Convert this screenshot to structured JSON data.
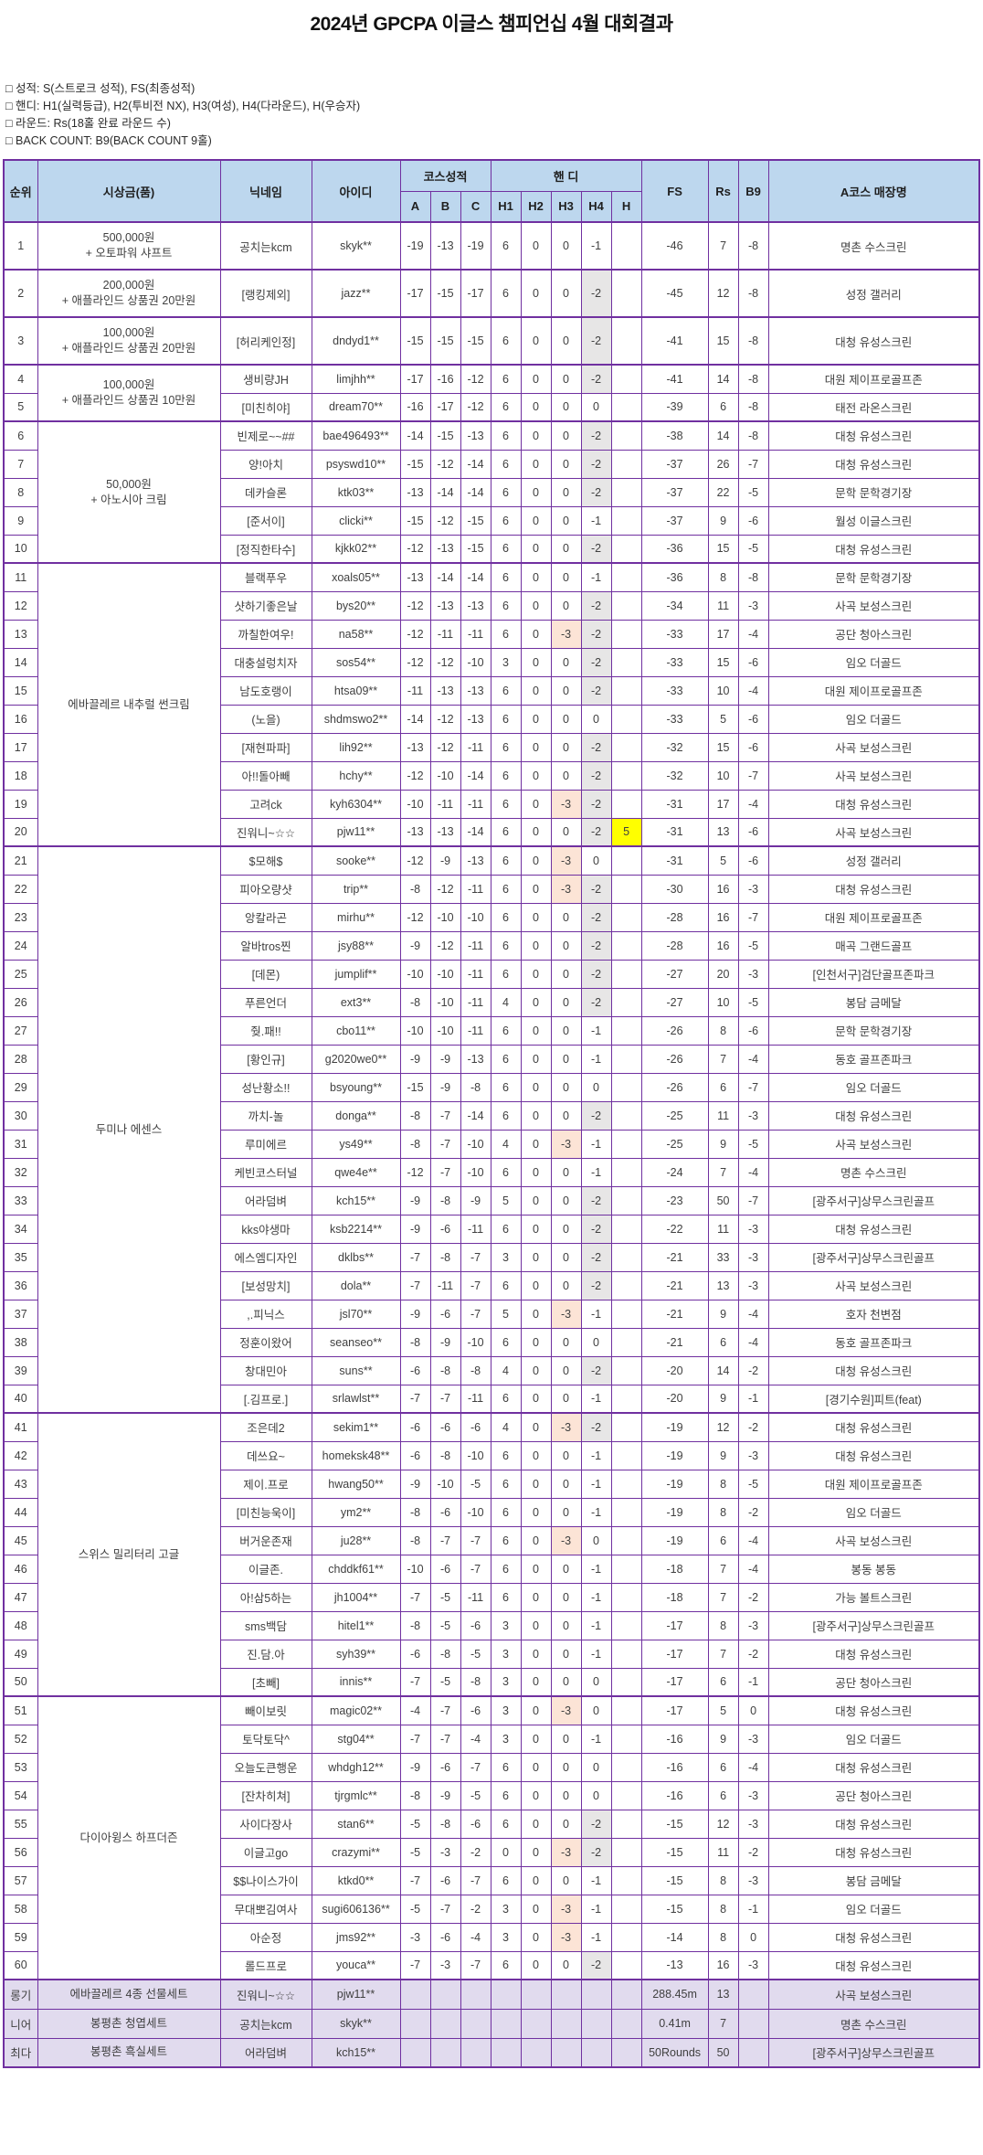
{
  "title": "2024년 GPCPA 이글스 챔피언십 4월 대회결과",
  "legend": [
    "□ 성적: S(스트로크 성적), FS(최종성적)",
    "□ 핸디: H1(실력등급), H2(투비전 NX), H3(여성), H4(다라운드), H(우승자)",
    "□ 라운드: Rs(18홀 완료 라운드 수)",
    "□ BACK COUNT: B9(BACK COUNT 9홀)"
  ],
  "colors": {
    "border": "#7030a0",
    "header_bg": "#bdd7ee",
    "h3_flag": "#fce4d6",
    "h4_flag": "#e7e6e6",
    "winner_flag": "#ffff00",
    "special_bg": "#e1dbee",
    "text": "#404040"
  },
  "table": {
    "headers": {
      "rank": "순위",
      "prize": "시상금(품)",
      "nickname": "닉네임",
      "id": "아이디",
      "course_group": "코스성적",
      "course_sub": [
        "A",
        "B",
        "C"
      ],
      "handi_group": "핸 디",
      "handi_sub": [
        "H1",
        "H2",
        "H3",
        "H4",
        "H"
      ],
      "fs": "FS",
      "rs": "Rs",
      "b9": "B9",
      "store": "A코스 매장명"
    },
    "row_columns": [
      "rank",
      "nickname",
      "id",
      "A",
      "B",
      "C",
      "H1",
      "H2",
      "H3",
      "H4",
      "H",
      "FS",
      "Rs",
      "B9",
      "store"
    ],
    "prize_groups": [
      {
        "from": 1,
        "rows": 1,
        "lines": [
          "500,000원",
          "+ 오토파워 샤프트"
        ]
      },
      {
        "from": 2,
        "rows": 1,
        "lines": [
          "200,000원",
          "+ 애플라인드 상품권 20만원"
        ]
      },
      {
        "from": 3,
        "rows": 1,
        "lines": [
          "100,000원",
          "+ 애플라인드 상품권 20만원"
        ]
      },
      {
        "from": 4,
        "rows": 2,
        "lines": [
          "100,000원",
          "+ 애플라인드 상품권 10만원"
        ]
      },
      {
        "from": 6,
        "rows": 5,
        "lines": [
          "50,000원",
          "+ 아노시아 크림"
        ]
      },
      {
        "from": 11,
        "rows": 10,
        "lines": [
          "에바끌레르 내추럴 썬크림"
        ]
      },
      {
        "from": 21,
        "rows": 20,
        "lines": [
          "두미나 에센스"
        ]
      },
      {
        "from": 41,
        "rows": 10,
        "lines": [
          "스위스 밀리터리 고글"
        ]
      },
      {
        "from": 51,
        "rows": 10,
        "lines": [
          "다이아윙스 하프더즌"
        ]
      }
    ],
    "rows": [
      [
        "1",
        "공치는kcm",
        "skyk**",
        "-19",
        "-13",
        "-19",
        "6",
        "0",
        "0",
        "-1",
        "",
        "-46",
        "7",
        "-8",
        "명촌 수스크린"
      ],
      [
        "2",
        "[랭킹제외]",
        "jazz**",
        "-17",
        "-15",
        "-17",
        "6",
        "0",
        "0",
        "-2",
        "",
        "-45",
        "12",
        "-8",
        "성정 갤러리"
      ],
      [
        "3",
        "[허리케인정]",
        "dndyd1**",
        "-15",
        "-15",
        "-15",
        "6",
        "0",
        "0",
        "-2",
        "",
        "-41",
        "15",
        "-8",
        "대청 유성스크린"
      ],
      [
        "4",
        "생비량JH",
        "limjhh**",
        "-17",
        "-16",
        "-12",
        "6",
        "0",
        "0",
        "-2",
        "",
        "-41",
        "14",
        "-8",
        "대원 제이프로골프존"
      ],
      [
        "5",
        "[미친히야]",
        "dream70**",
        "-16",
        "-17",
        "-12",
        "6",
        "0",
        "0",
        "0",
        "",
        "-39",
        "6",
        "-8",
        "태전 라온스크린"
      ],
      [
        "6",
        "빈제로~~##",
        "bae496493**",
        "-14",
        "-15",
        "-13",
        "6",
        "0",
        "0",
        "-2",
        "",
        "-38",
        "14",
        "-8",
        "대청 유성스크린"
      ],
      [
        "7",
        "양!아치",
        "psyswd10**",
        "-15",
        "-12",
        "-14",
        "6",
        "0",
        "0",
        "-2",
        "",
        "-37",
        "26",
        "-7",
        "대청 유성스크린"
      ],
      [
        "8",
        "데카슬론",
        "ktk03**",
        "-13",
        "-14",
        "-14",
        "6",
        "0",
        "0",
        "-2",
        "",
        "-37",
        "22",
        "-5",
        "문학 문학경기장"
      ],
      [
        "9",
        "[준서이]",
        "clicki**",
        "-15",
        "-12",
        "-15",
        "6",
        "0",
        "0",
        "-1",
        "",
        "-37",
        "9",
        "-6",
        "월성 이글스크린"
      ],
      [
        "10",
        "[정직한타수]",
        "kjkk02**",
        "-12",
        "-13",
        "-15",
        "6",
        "0",
        "0",
        "-2",
        "",
        "-36",
        "15",
        "-5",
        "대청 유성스크린"
      ],
      [
        "11",
        "블랙푸우",
        "xoals05**",
        "-13",
        "-14",
        "-14",
        "6",
        "0",
        "0",
        "-1",
        "",
        "-36",
        "8",
        "-8",
        "문학 문학경기장"
      ],
      [
        "12",
        "샷하기좋은날",
        "bys20**",
        "-12",
        "-13",
        "-13",
        "6",
        "0",
        "0",
        "-2",
        "",
        "-34",
        "11",
        "-3",
        "사곡 보성스크린"
      ],
      [
        "13",
        "까칠한여우!",
        "na58**",
        "-12",
        "-11",
        "-11",
        "6",
        "0",
        "-3",
        "-2",
        "",
        "-33",
        "17",
        "-4",
        "공단 청아스크린"
      ],
      [
        "14",
        "대충설렁치자",
        "sos54**",
        "-12",
        "-12",
        "-10",
        "3",
        "0",
        "0",
        "-2",
        "",
        "-33",
        "15",
        "-6",
        "임오 더골드"
      ],
      [
        "15",
        "남도호랭이",
        "htsa09**",
        "-11",
        "-13",
        "-13",
        "6",
        "0",
        "0",
        "-2",
        "",
        "-33",
        "10",
        "-4",
        "대원 제이프로골프존"
      ],
      [
        "16",
        "(노을)",
        "shdmswo2**",
        "-14",
        "-12",
        "-13",
        "6",
        "0",
        "0",
        "0",
        "",
        "-33",
        "5",
        "-6",
        "임오 더골드"
      ],
      [
        "17",
        "[재현파파]",
        "lih92**",
        "-13",
        "-12",
        "-11",
        "6",
        "0",
        "0",
        "-2",
        "",
        "-32",
        "15",
        "-6",
        "사곡 보성스크린"
      ],
      [
        "18",
        "아!!돌아빼",
        "hchy**",
        "-12",
        "-10",
        "-14",
        "6",
        "0",
        "0",
        "-2",
        "",
        "-32",
        "10",
        "-7",
        "사곡 보성스크린"
      ],
      [
        "19",
        "고려ck",
        "kyh6304**",
        "-10",
        "-11",
        "-11",
        "6",
        "0",
        "-3",
        "-2",
        "",
        "-31",
        "17",
        "-4",
        "대청 유성스크린"
      ],
      [
        "20",
        "진워니~☆☆",
        "pjw11**",
        "-13",
        "-13",
        "-14",
        "6",
        "0",
        "0",
        "-2",
        "5",
        "-31",
        "13",
        "-6",
        "사곡 보성스크린"
      ],
      [
        "21",
        "$모해$",
        "sooke**",
        "-12",
        "-9",
        "-13",
        "6",
        "0",
        "-3",
        "0",
        "",
        "-31",
        "5",
        "-6",
        "성정 갤러리"
      ],
      [
        "22",
        "피아오량샷",
        "trip**",
        "-8",
        "-12",
        "-11",
        "6",
        "0",
        "-3",
        "-2",
        "",
        "-30",
        "16",
        "-3",
        "대청 유성스크린"
      ],
      [
        "23",
        "앙칼라곤",
        "mirhu**",
        "-12",
        "-10",
        "-10",
        "6",
        "0",
        "0",
        "-2",
        "",
        "-28",
        "16",
        "-7",
        "대원 제이프로골프존"
      ],
      [
        "24",
        "알바tros찐",
        "jsy88**",
        "-9",
        "-12",
        "-11",
        "6",
        "0",
        "0",
        "-2",
        "",
        "-28",
        "16",
        "-5",
        "매곡 그랜드골프"
      ],
      [
        "25",
        "[데몬)",
        "jumplif**",
        "-10",
        "-10",
        "-11",
        "6",
        "0",
        "0",
        "-2",
        "",
        "-27",
        "20",
        "-3",
        "[인천서구]검단골프존파크"
      ],
      [
        "26",
        "푸른언더",
        "ext3**",
        "-8",
        "-10",
        "-11",
        "4",
        "0",
        "0",
        "-2",
        "",
        "-27",
        "10",
        "-5",
        "봉담 금메달"
      ],
      [
        "27",
        "줮.패!!",
        "cbo11**",
        "-10",
        "-10",
        "-11",
        "6",
        "0",
        "0",
        "-1",
        "",
        "-26",
        "8",
        "-6",
        "문학 문학경기장"
      ],
      [
        "28",
        "[황인규]",
        "g2020we0**",
        "-9",
        "-9",
        "-13",
        "6",
        "0",
        "0",
        "-1",
        "",
        "-26",
        "7",
        "-4",
        "동호 골프존파크"
      ],
      [
        "29",
        "성난황소!!",
        "bsyoung**",
        "-15",
        "-9",
        "-8",
        "6",
        "0",
        "0",
        "0",
        "",
        "-26",
        "6",
        "-7",
        "임오 더골드"
      ],
      [
        "30",
        "까치-놀",
        "donga**",
        "-8",
        "-7",
        "-14",
        "6",
        "0",
        "0",
        "-2",
        "",
        "-25",
        "11",
        "-3",
        "대청 유성스크린"
      ],
      [
        "31",
        "루미에르",
        "ys49**",
        "-8",
        "-7",
        "-10",
        "4",
        "0",
        "-3",
        "-1",
        "",
        "-25",
        "9",
        "-5",
        "사곡 보성스크린"
      ],
      [
        "32",
        "케빈코스터널",
        "qwe4e**",
        "-12",
        "-7",
        "-10",
        "6",
        "0",
        "0",
        "-1",
        "",
        "-24",
        "7",
        "-4",
        "명촌 수스크린"
      ],
      [
        "33",
        "어라덤벼",
        "kch15**",
        "-9",
        "-8",
        "-9",
        "5",
        "0",
        "0",
        "-2",
        "",
        "-23",
        "50",
        "-7",
        "[광주서구]상무스크린골프"
      ],
      [
        "34",
        "kks야생마",
        "ksb2214**",
        "-9",
        "-6",
        "-11",
        "6",
        "0",
        "0",
        "-2",
        "",
        "-22",
        "11",
        "-3",
        "대청 유성스크린"
      ],
      [
        "35",
        "에스엠디자인",
        "dklbs**",
        "-7",
        "-8",
        "-7",
        "3",
        "0",
        "0",
        "-2",
        "",
        "-21",
        "33",
        "-3",
        "[광주서구]상무스크린골프"
      ],
      [
        "36",
        "[보성망치]",
        "dola**",
        "-7",
        "-11",
        "-7",
        "6",
        "0",
        "0",
        "-2",
        "",
        "-21",
        "13",
        "-3",
        "사곡 보성스크린"
      ],
      [
        "37",
        ",.피닉스",
        "jsl70**",
        "-9",
        "-6",
        "-7",
        "5",
        "0",
        "-3",
        "-1",
        "",
        "-21",
        "9",
        "-4",
        "호자 천변점"
      ],
      [
        "38",
        "정훈이왔어",
        "seanseo**",
        "-8",
        "-9",
        "-10",
        "6",
        "0",
        "0",
        "0",
        "",
        "-21",
        "6",
        "-4",
        "동호 골프존파크"
      ],
      [
        "39",
        "창대민아",
        "suns**",
        "-6",
        "-8",
        "-8",
        "4",
        "0",
        "0",
        "-2",
        "",
        "-20",
        "14",
        "-2",
        "대청 유성스크린"
      ],
      [
        "40",
        "[.김프로.]",
        "srlawlst**",
        "-7",
        "-7",
        "-11",
        "6",
        "0",
        "0",
        "-1",
        "",
        "-20",
        "9",
        "-1",
        "[경기수원]피트(feat)"
      ],
      [
        "41",
        "조은데2",
        "sekim1**",
        "-6",
        "-6",
        "-6",
        "4",
        "0",
        "-3",
        "-2",
        "",
        "-19",
        "12",
        "-2",
        "대청 유성스크린"
      ],
      [
        "42",
        "데쓰요~",
        "homeksk48**",
        "-6",
        "-8",
        "-10",
        "6",
        "0",
        "0",
        "-1",
        "",
        "-19",
        "9",
        "-3",
        "대청 유성스크린"
      ],
      [
        "43",
        "제이.프로",
        "hwang50**",
        "-9",
        "-10",
        "-5",
        "6",
        "0",
        "0",
        "-1",
        "",
        "-19",
        "8",
        "-5",
        "대원 제이프로골프존"
      ],
      [
        "44",
        "[미친능욱이]",
        "ym2**",
        "-8",
        "-6",
        "-10",
        "6",
        "0",
        "0",
        "-1",
        "",
        "-19",
        "8",
        "-2",
        "임오 더골드"
      ],
      [
        "45",
        "버거운존재",
        "ju28**",
        "-8",
        "-7",
        "-7",
        "6",
        "0",
        "-3",
        "0",
        "",
        "-19",
        "6",
        "-4",
        "사곡 보성스크린"
      ],
      [
        "46",
        "이글존.",
        "chddkf61**",
        "-10",
        "-6",
        "-7",
        "6",
        "0",
        "0",
        "-1",
        "",
        "-18",
        "7",
        "-4",
        "봉동 봉동"
      ],
      [
        "47",
        "아!삼5하는",
        "jh1004**",
        "-7",
        "-5",
        "-11",
        "6",
        "0",
        "0",
        "-1",
        "",
        "-18",
        "7",
        "-2",
        "가능 볼트스크린"
      ],
      [
        "48",
        "sms백담",
        "hitel1**",
        "-8",
        "-5",
        "-6",
        "3",
        "0",
        "0",
        "-1",
        "",
        "-17",
        "8",
        "-3",
        "[광주서구]상무스크린골프"
      ],
      [
        "49",
        "진.담.아",
        "syh39**",
        "-6",
        "-8",
        "-5",
        "3",
        "0",
        "0",
        "-1",
        "",
        "-17",
        "7",
        "-2",
        "대청 유성스크린"
      ],
      [
        "50",
        "[초빼]",
        "innis**",
        "-7",
        "-5",
        "-8",
        "3",
        "0",
        "0",
        "0",
        "",
        "-17",
        "6",
        "-1",
        "공단 청아스크린"
      ],
      [
        "51",
        "빼이보릿",
        "magic02**",
        "-4",
        "-7",
        "-6",
        "3",
        "0",
        "-3",
        "0",
        "",
        "-17",
        "5",
        "0",
        "대청 유성스크린"
      ],
      [
        "52",
        "토닥토닥^",
        "stg04**",
        "-7",
        "-7",
        "-4",
        "3",
        "0",
        "0",
        "-1",
        "",
        "-16",
        "9",
        "-3",
        "임오 더골드"
      ],
      [
        "53",
        "오늘도큰행운",
        "whdgh12**",
        "-9",
        "-6",
        "-7",
        "6",
        "0",
        "0",
        "0",
        "",
        "-16",
        "6",
        "-4",
        "대청 유성스크린"
      ],
      [
        "54",
        "[잔차히쳐]",
        "tjrgmlc**",
        "-8",
        "-9",
        "-5",
        "6",
        "0",
        "0",
        "0",
        "",
        "-16",
        "6",
        "-3",
        "공단 청아스크린"
      ],
      [
        "55",
        "사이다장사",
        "stan6**",
        "-5",
        "-8",
        "-6",
        "6",
        "0",
        "0",
        "-2",
        "",
        "-15",
        "12",
        "-3",
        "대청 유성스크린"
      ],
      [
        "56",
        "이글고go",
        "crazymi**",
        "-5",
        "-3",
        "-2",
        "0",
        "0",
        "-3",
        "-2",
        "",
        "-15",
        "11",
        "-2",
        "대청 유성스크린"
      ],
      [
        "57",
        "$$나이스가이",
        "ktkd0**",
        "-7",
        "-6",
        "-7",
        "6",
        "0",
        "0",
        "-1",
        "",
        "-15",
        "8",
        "-3",
        "봉담 금메달"
      ],
      [
        "58",
        "무대뽀김여사",
        "sugi606136**",
        "-5",
        "-7",
        "-2",
        "3",
        "0",
        "-3",
        "-1",
        "",
        "-15",
        "8",
        "-1",
        "임오 더골드"
      ],
      [
        "59",
        "아순정",
        "jms92**",
        "-3",
        "-6",
        "-4",
        "3",
        "0",
        "-3",
        "-1",
        "",
        "-14",
        "8",
        "0",
        "대청 유성스크린"
      ],
      [
        "60",
        "롤드프로",
        "youca**",
        "-7",
        "-3",
        "-7",
        "6",
        "0",
        "0",
        "-2",
        "",
        "-13",
        "16",
        "-3",
        "대청 유성스크린"
      ]
    ],
    "special_rows": [
      {
        "rank": "롱기",
        "prize": "에바끌레르 4종 선물세트",
        "nickname": "진워니~☆☆",
        "id": "pjw11**",
        "fs": "288.45m",
        "rs": "13",
        "b9": "",
        "store": "사곡 보성스크린"
      },
      {
        "rank": "니어",
        "prize": "봉평촌 청엽세트",
        "nickname": "공치는kcm",
        "id": "skyk**",
        "fs": "0.41m",
        "rs": "7",
        "b9": "",
        "store": "명촌 수스크린"
      },
      {
        "rank": "최다",
        "prize": "봉평촌 흑실세트",
        "nickname": "어라덤벼",
        "id": "kch15**",
        "fs": "50Rounds",
        "rs": "50",
        "b9": "",
        "store": "[광주서구]상무스크린골프"
      }
    ]
  }
}
